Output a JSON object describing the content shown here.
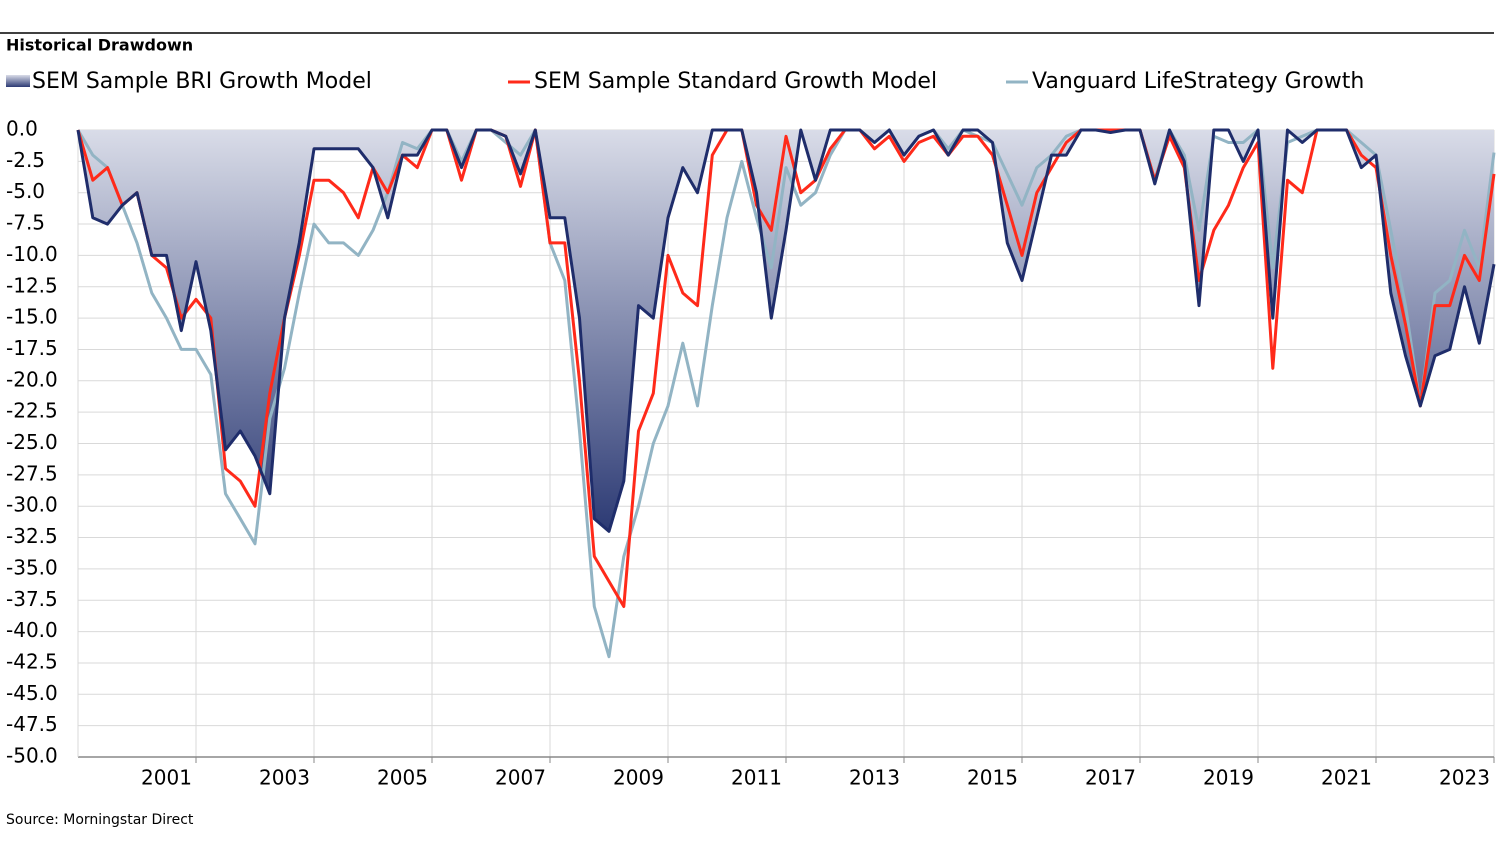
{
  "chart_data": {
    "type": "line",
    "title": "Historical Drawdown",
    "source": "Source: Morningstar Direct",
    "x": [
      2000,
      2000.25,
      2000.5,
      2000.75,
      2001,
      2001.25,
      2001.5,
      2001.75,
      2002,
      2002.25,
      2002.5,
      2002.75,
      2003,
      2003.25,
      2003.5,
      2003.75,
      2004,
      2004.25,
      2004.5,
      2004.75,
      2005,
      2005.25,
      2005.5,
      2005.75,
      2006,
      2006.25,
      2006.5,
      2006.75,
      2007,
      2007.25,
      2007.5,
      2007.75,
      2008,
      2008.25,
      2008.5,
      2008.75,
      2009,
      2009.25,
      2009.5,
      2009.75,
      2010,
      2010.25,
      2010.5,
      2010.75,
      2011,
      2011.25,
      2011.5,
      2011.75,
      2012,
      2012.25,
      2012.5,
      2012.75,
      2013,
      2013.25,
      2013.5,
      2013.75,
      2014,
      2014.25,
      2014.5,
      2014.75,
      2015,
      2015.25,
      2015.5,
      2015.75,
      2016,
      2016.25,
      2016.5,
      2016.75,
      2017,
      2017.25,
      2017.5,
      2017.75,
      2018,
      2018.25,
      2018.5,
      2018.75,
      2019,
      2019.25,
      2019.5,
      2019.75,
      2020,
      2020.25,
      2020.5,
      2020.75,
      2021,
      2021.25,
      2021.5,
      2021.75,
      2022,
      2022.25,
      2022.5,
      2022.75,
      2023,
      2023.25,
      2023.5,
      2023.75,
      2024
    ],
    "series": [
      {
        "name": "SEM Sample BRI Growth Model",
        "color": "#1f2d6b",
        "area": true,
        "values": [
          0,
          -7,
          -7.5,
          -6,
          -5,
          -10,
          -10,
          -16,
          -10.5,
          -16,
          -25.5,
          -24,
          -26,
          -29,
          -15,
          -9,
          -1.5,
          -1.5,
          -1.5,
          -1.5,
          -3,
          -7,
          -2,
          -2,
          0,
          0,
          -3,
          0,
          0,
          -0.5,
          -3.5,
          0,
          -7,
          -7,
          -15,
          -31,
          -32,
          -28,
          -14,
          -15,
          -7,
          -3,
          -5,
          0,
          0,
          0,
          -5,
          -15,
          -8,
          0,
          -4,
          0,
          0,
          0,
          -1,
          0,
          -2,
          -0.5,
          0,
          -2,
          0,
          0,
          -1,
          -9,
          -12,
          -7,
          -2,
          -2,
          0,
          0,
          -0.2,
          0,
          0,
          -4.3,
          0,
          -2.5,
          -14,
          0,
          0,
          -2.5,
          0,
          -15,
          0,
          -1,
          0,
          0,
          0,
          -3,
          -2,
          -13,
          -18,
          -22,
          -18,
          -17.5,
          -12.5,
          -17,
          -10.7
        ]
      },
      {
        "name": "SEM Sample Standard Growth Model",
        "color": "#ff2a1a",
        "values": [
          0,
          -4,
          -3,
          -6,
          -5,
          -10,
          -11,
          -15,
          -13.5,
          -15,
          -27,
          -28,
          -30,
          -21,
          -15,
          -10,
          -4,
          -4,
          -5,
          -7,
          -3,
          -5,
          -2,
          -3,
          0,
          0,
          -4,
          0,
          0,
          -0.5,
          -4.5,
          0,
          -9,
          -9,
          -20,
          -34,
          -36,
          -38,
          -24,
          -21,
          -10,
          -13,
          -14,
          -2,
          0,
          0,
          -6,
          -8,
          -0.5,
          -5,
          -4,
          -1.5,
          0,
          0,
          -1.5,
          -0.5,
          -2.5,
          -1,
          -0.5,
          -2,
          -0.5,
          -0.5,
          -2,
          -6,
          -10,
          -5,
          -3,
          -1,
          0,
          0,
          0,
          0,
          0,
          -4,
          -0.5,
          -3,
          -12,
          -8,
          -6,
          -3,
          -1,
          -19,
          -4,
          -5,
          0,
          0,
          0,
          -2,
          -3,
          -10,
          -15.5,
          -22,
          -14,
          -14,
          -10,
          -12,
          -3.5
        ]
      },
      {
        "name": "Vanguard LifeStrategy Growth",
        "color": "#92b4c4",
        "values": [
          0,
          -2,
          -3,
          -6,
          -9,
          -13,
          -15,
          -17.5,
          -17.5,
          -19.5,
          -29,
          -31,
          -33,
          -23,
          -19,
          -13,
          -7.5,
          -9,
          -9,
          -10,
          -8,
          -5,
          -1,
          -1.5,
          0,
          0,
          -2.5,
          0,
          0,
          -1,
          -2,
          0,
          -9,
          -12,
          -24,
          -38,
          -42,
          -34,
          -30,
          -25,
          -22,
          -17,
          -22,
          -14,
          -7,
          -2.5,
          -7,
          -11,
          -3,
          -6,
          -5,
          -2,
          0,
          0,
          -1,
          0,
          -2,
          -0.5,
          0,
          -1.5,
          0,
          -0.5,
          -1,
          -3.5,
          -6,
          -3,
          -2,
          -0.5,
          0,
          0,
          0,
          0,
          0,
          -4,
          0,
          -2,
          -8,
          -0.5,
          -1,
          -1,
          0,
          -11,
          -1,
          -0.5,
          0,
          0,
          0,
          -1,
          -2,
          -8,
          -14,
          -22,
          -13,
          -12,
          -8,
          -11,
          -1.8
        ]
      }
    ],
    "xlim": [
      2000,
      2024
    ],
    "xticks": [
      2001,
      2003,
      2005,
      2007,
      2009,
      2011,
      2013,
      2015,
      2017,
      2019,
      2021,
      2023
    ],
    "ylim": [
      -50,
      0
    ],
    "yticks": [
      {
        "value": 0,
        "label": "0.0"
      },
      -2.5,
      {
        "value": -5,
        "label": "-5.0"
      },
      -7.5,
      {
        "value": -10,
        "label": "-10.0"
      },
      -12.5,
      {
        "value": -15,
        "label": "-15.0"
      },
      -17.5,
      {
        "value": -20,
        "label": "-20.0"
      },
      -22.5,
      {
        "value": -25,
        "label": "-25.0"
      },
      -27.5,
      {
        "value": -30,
        "label": "-30.0"
      },
      -32.5,
      {
        "value": -35,
        "label": "-35.0"
      },
      -37.5,
      {
        "value": -40,
        "label": "-40.0"
      },
      -42.5,
      {
        "value": -45,
        "label": "-45.0"
      },
      -47.5,
      {
        "value": -50,
        "label": "-50.0"
      }
    ],
    "grid": true
  }
}
